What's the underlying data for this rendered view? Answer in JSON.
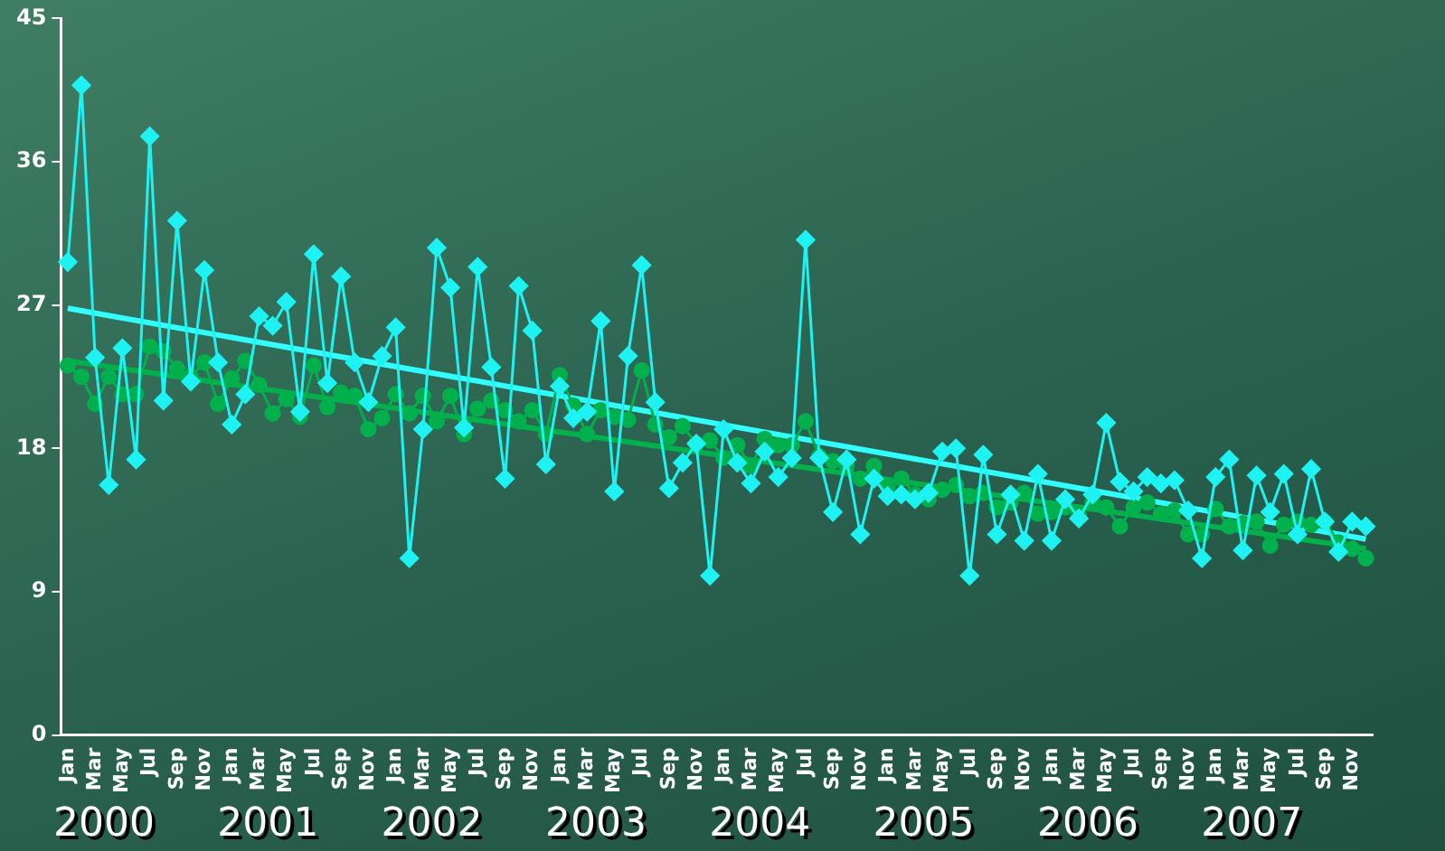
{
  "chart_data": {
    "type": "line",
    "categories": [
      "Jan",
      null,
      "Mar",
      null,
      "May",
      null,
      "Jul",
      null,
      "Sep",
      null,
      "Nov",
      null,
      "Jan",
      null,
      "Mar",
      null,
      "May",
      null,
      "Jul",
      null,
      "Sep",
      null,
      "Nov",
      null,
      "Jan",
      null,
      "Mar",
      null,
      "May",
      null,
      "Jul",
      null,
      "Sep",
      null,
      "Nov",
      null,
      "Jan",
      null,
      "Mar",
      null,
      "May",
      null,
      "Jul",
      null,
      "Sep",
      null,
      "Nov",
      null,
      "Jan",
      null,
      "Mar",
      null,
      "May",
      null,
      "Jul",
      null,
      "Sep",
      null,
      "Nov",
      null,
      "Jan",
      null,
      "Mar",
      null,
      "May",
      null,
      "Jul",
      null,
      "Sep",
      null,
      "Nov",
      null,
      "Jan",
      null,
      "Mar",
      null,
      "May",
      null,
      "Jul",
      null,
      "Sep",
      null,
      "Nov",
      null,
      "Jan",
      null,
      "Mar",
      null,
      "May",
      null,
      "Jul",
      null,
      "Sep",
      null,
      "Nov",
      null
    ],
    "series": [
      {
        "color": "#1ef2f2",
        "marker": "diamond",
        "values": [
          29.7,
          40.8,
          23.7,
          15.7,
          24.3,
          17.3,
          37.6,
          21.0,
          32.3,
          22.2,
          29.2,
          23.4,
          19.5,
          21.4,
          26.3,
          25.7,
          27.2,
          20.3,
          30.2,
          22.1,
          28.8,
          23.4,
          20.9,
          23.8,
          25.6,
          11.1,
          19.2,
          30.6,
          28.1,
          19.3,
          29.4,
          23.1,
          16.1,
          28.2,
          25.4,
          17.0,
          21.9,
          19.9,
          20.3,
          26.0,
          15.3,
          23.8,
          29.5,
          20.9,
          15.5,
          17.1,
          18.3,
          10.0,
          19.2,
          17.1,
          15.8,
          17.8,
          16.2,
          17.4,
          31.1,
          17.4,
          14.0,
          17.3,
          12.6,
          16.1,
          15.0,
          15.1,
          14.8,
          15.2,
          17.8,
          18.0,
          10.0,
          17.6,
          12.6,
          15.1,
          12.2,
          16.4,
          12.2,
          14.8,
          13.6,
          15.1,
          19.6,
          15.9,
          15.3,
          16.2,
          15.8,
          16.0,
          14.1,
          11.1,
          16.2,
          17.3,
          11.6,
          16.3,
          14.0,
          16.4,
          12.6,
          16.7,
          13.4,
          11.5,
          13.4,
          13.1
        ]
      },
      {
        "color": "#00b04c",
        "marker": "circle",
        "values": [
          23.2,
          22.5,
          20.8,
          22.5,
          21.4,
          21.4,
          24.4,
          24.1,
          23.0,
          22.5,
          23.4,
          20.8,
          22.4,
          23.5,
          22.0,
          20.2,
          21.1,
          20.0,
          23.2,
          20.6,
          21.5,
          21.3,
          19.2,
          19.9,
          21.4,
          20.2,
          21.3,
          19.7,
          21.3,
          18.9,
          20.5,
          21.0,
          20.4,
          19.7,
          20.4,
          18.9,
          22.6,
          20.7,
          18.9,
          20.4,
          20.0,
          19.8,
          22.9,
          19.5,
          18.7,
          19.4,
          18.3,
          18.5,
          17.4,
          18.2,
          16.9,
          18.6,
          18.2,
          18.2,
          19.7,
          17.5,
          17.2,
          16.9,
          16.1,
          16.9,
          15.6,
          16.1,
          15.1,
          14.8,
          15.4,
          15.7,
          15.0,
          15.2,
          14.3,
          14.6,
          15.2,
          13.9,
          14.0,
          14.3,
          13.8,
          14.6,
          14.3,
          13.1,
          14.3,
          14.6,
          13.9,
          14.1,
          12.6,
          12.6,
          14.2,
          13.1,
          13.3,
          13.4,
          11.9,
          13.2,
          13.4,
          13.2,
          13.4,
          12.1,
          11.7,
          11.1
        ]
      },
      {
        "color": "#33ffff",
        "marker": "none",
        "values": [
          26.8,
          null,
          null,
          null,
          null,
          null,
          null,
          null,
          null,
          null,
          null,
          null,
          null,
          null,
          null,
          null,
          null,
          null,
          null,
          null,
          null,
          null,
          null,
          null,
          null,
          null,
          null,
          null,
          null,
          null,
          null,
          null,
          null,
          null,
          null,
          null,
          null,
          null,
          null,
          null,
          null,
          null,
          null,
          null,
          null,
          null,
          null,
          null,
          null,
          null,
          null,
          null,
          null,
          null,
          null,
          null,
          null,
          null,
          null,
          null,
          null,
          null,
          null,
          null,
          null,
          null,
          null,
          null,
          null,
          null,
          null,
          null,
          null,
          null,
          null,
          null,
          null,
          null,
          null,
          null,
          null,
          null,
          null,
          null,
          null,
          null,
          null,
          null,
          null,
          null,
          null,
          null,
          null,
          null,
          null,
          12.3
        ]
      },
      {
        "color": "#00b04c",
        "marker": "none",
        "values": [
          23.5,
          null,
          null,
          null,
          null,
          null,
          null,
          null,
          null,
          null,
          null,
          null,
          null,
          null,
          null,
          null,
          null,
          null,
          null,
          null,
          null,
          null,
          null,
          null,
          null,
          null,
          null,
          null,
          null,
          null,
          null,
          null,
          null,
          null,
          null,
          null,
          null,
          null,
          null,
          null,
          null,
          null,
          null,
          null,
          null,
          null,
          null,
          null,
          null,
          null,
          null,
          null,
          null,
          null,
          null,
          null,
          null,
          null,
          null,
          null,
          null,
          null,
          null,
          null,
          null,
          null,
          null,
          null,
          null,
          null,
          null,
          null,
          null,
          null,
          null,
          null,
          null,
          null,
          null,
          null,
          null,
          null,
          null,
          null,
          null,
          null,
          null,
          null,
          null,
          null,
          null,
          null,
          null,
          null,
          null,
          11.7
        ]
      }
    ],
    "ylim": [
      0,
      45
    ],
    "yticks": [
      0,
      9,
      18,
      27,
      36,
      45
    ],
    "annotations": [
      "2000",
      "2001",
      "2002",
      "2003",
      "2004",
      "2005",
      "2006",
      "2007"
    ]
  }
}
